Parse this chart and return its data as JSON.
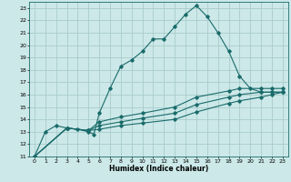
{
  "xlabel": "Humidex (Indice chaleur)",
  "background_color": "#cce8e8",
  "grid_color": "#aacccc",
  "line_color": "#1a6b6b",
  "xlim": [
    -0.5,
    23.5
  ],
  "ylim": [
    11,
    23.5
  ],
  "xticks": [
    0,
    1,
    2,
    3,
    4,
    5,
    6,
    7,
    8,
    9,
    10,
    11,
    12,
    13,
    14,
    15,
    16,
    17,
    18,
    19,
    20,
    21,
    22,
    23
  ],
  "yticks": [
    11,
    12,
    13,
    14,
    15,
    16,
    17,
    18,
    19,
    20,
    21,
    22,
    23
  ],
  "curve1_x": [
    0,
    1,
    2,
    3,
    4,
    5,
    5.5,
    6,
    7,
    8,
    9,
    10,
    11,
    12,
    13,
    14,
    15,
    16,
    17,
    18,
    19,
    20,
    21,
    22,
    23
  ],
  "curve1_y": [
    11,
    13,
    13.5,
    13.3,
    13.2,
    13.0,
    12.8,
    14.5,
    16.5,
    18.3,
    18.8,
    19.5,
    20.5,
    20.5,
    21.5,
    22.5,
    23.2,
    22.3,
    21.0,
    19.5,
    17.5,
    16.5,
    16.2,
    16.2,
    16.2
  ],
  "curve2_x": [
    0,
    3,
    5,
    6,
    8,
    10,
    13,
    15,
    18,
    19,
    21,
    22,
    23
  ],
  "curve2_y": [
    11,
    13.3,
    13.1,
    13.8,
    14.2,
    14.5,
    15.0,
    15.8,
    16.3,
    16.5,
    16.5,
    16.5,
    16.5
  ],
  "curve3_x": [
    0,
    3,
    5,
    6,
    8,
    10,
    13,
    15,
    18,
    19,
    21,
    22,
    23
  ],
  "curve3_y": [
    11,
    13.3,
    13.1,
    13.5,
    13.8,
    14.1,
    14.5,
    15.2,
    15.8,
    16.0,
    16.2,
    16.2,
    16.2
  ],
  "curve4_x": [
    0,
    3,
    5,
    6,
    8,
    10,
    13,
    15,
    18,
    19,
    21,
    22,
    23
  ],
  "curve4_y": [
    11,
    13.3,
    13.1,
    13.2,
    13.5,
    13.7,
    14.0,
    14.6,
    15.3,
    15.5,
    15.8,
    16.0,
    16.2
  ]
}
